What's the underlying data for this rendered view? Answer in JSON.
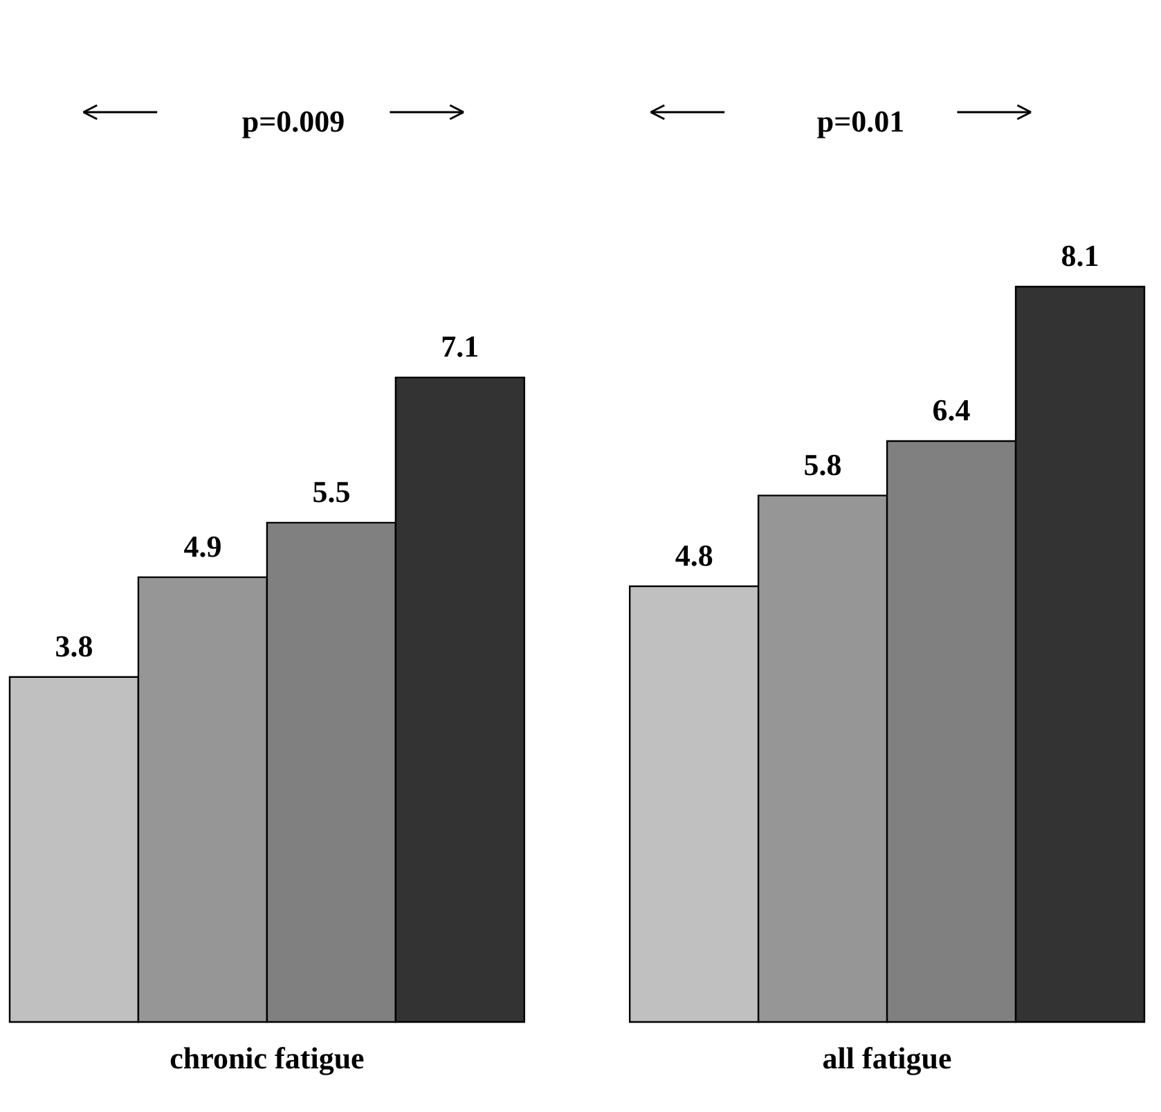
{
  "chart_data": {
    "type": "bar",
    "categories": [
      "chronic fatigue",
      "all fatigue"
    ],
    "series": [
      {
        "color": "#c0c0c0",
        "values": [
          3.8,
          4.8
        ]
      },
      {
        "color": "#969696",
        "values": [
          4.9,
          5.8
        ]
      },
      {
        "color": "#808080",
        "values": [
          5.5,
          6.4
        ]
      },
      {
        "color": "#333333",
        "values": [
          7.1,
          8.1
        ]
      }
    ],
    "data_labels": true,
    "annotations": [
      "p=0.009",
      "p=0.01"
    ],
    "grid": false,
    "legend": false
  }
}
